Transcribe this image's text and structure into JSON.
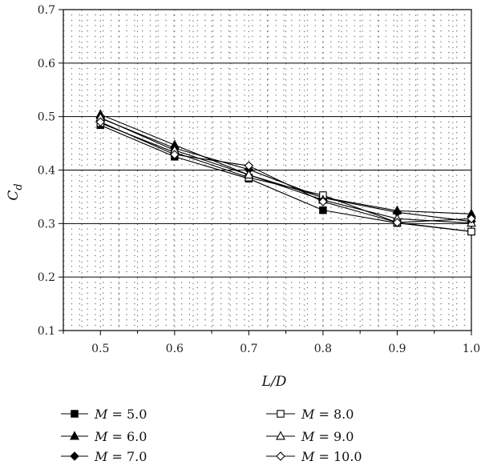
{
  "chart_data": {
    "type": "line",
    "title": "",
    "xlabel": "L/D",
    "ylabel": "C",
    "ylabel_sub": "d",
    "x": [
      0.5,
      0.6,
      0.7,
      0.8,
      0.9,
      1.0
    ],
    "x_ticks": [
      "0.5",
      "0.6",
      "0.7",
      "0.8",
      "0.9",
      "1.0"
    ],
    "y_ticks": [
      "0.1",
      "0.2",
      "0.3",
      "0.4",
      "0.5",
      "0.6",
      "0.7"
    ],
    "xlim": [
      0.45,
      1.0
    ],
    "ylim": [
      0.1,
      0.7
    ],
    "grid": "major solid horizontal, minor dotted",
    "legend_position": "bottom",
    "series": [
      {
        "name": "M = 5.0",
        "var": "M",
        "value_text": "= 5.0",
        "marker": "filled-square",
        "values": [
          0.484,
          0.425,
          0.384,
          0.325,
          0.301,
          0.285
        ]
      },
      {
        "name": "M = 6.0",
        "var": "M",
        "value_text": "= 6.0",
        "marker": "filled-triangle",
        "values": [
          0.504,
          0.447,
          0.391,
          0.349,
          0.324,
          0.318
        ]
      },
      {
        "name": "M = 7.0",
        "var": "M",
        "value_text": "= 7.0",
        "marker": "filled-diamond",
        "values": [
          0.497,
          0.441,
          0.401,
          0.348,
          0.321,
          0.304
        ]
      },
      {
        "name": "M = 8.0",
        "var": "M",
        "value_text": "= 8.0",
        "marker": "open-square",
        "values": [
          0.488,
          0.433,
          0.386,
          0.353,
          0.302,
          0.285
        ]
      },
      {
        "name": "M = 9.0",
        "var": "M",
        "value_text": "= 9.0",
        "marker": "open-triangle",
        "values": [
          0.498,
          0.437,
          0.391,
          0.344,
          0.309,
          0.301
        ]
      },
      {
        "name": "M = 10.0",
        "var": "M",
        "value_text": "= 10.0",
        "marker": "open-diamond",
        "values": [
          0.49,
          0.429,
          0.408,
          0.341,
          0.302,
          0.309
        ]
      }
    ]
  }
}
